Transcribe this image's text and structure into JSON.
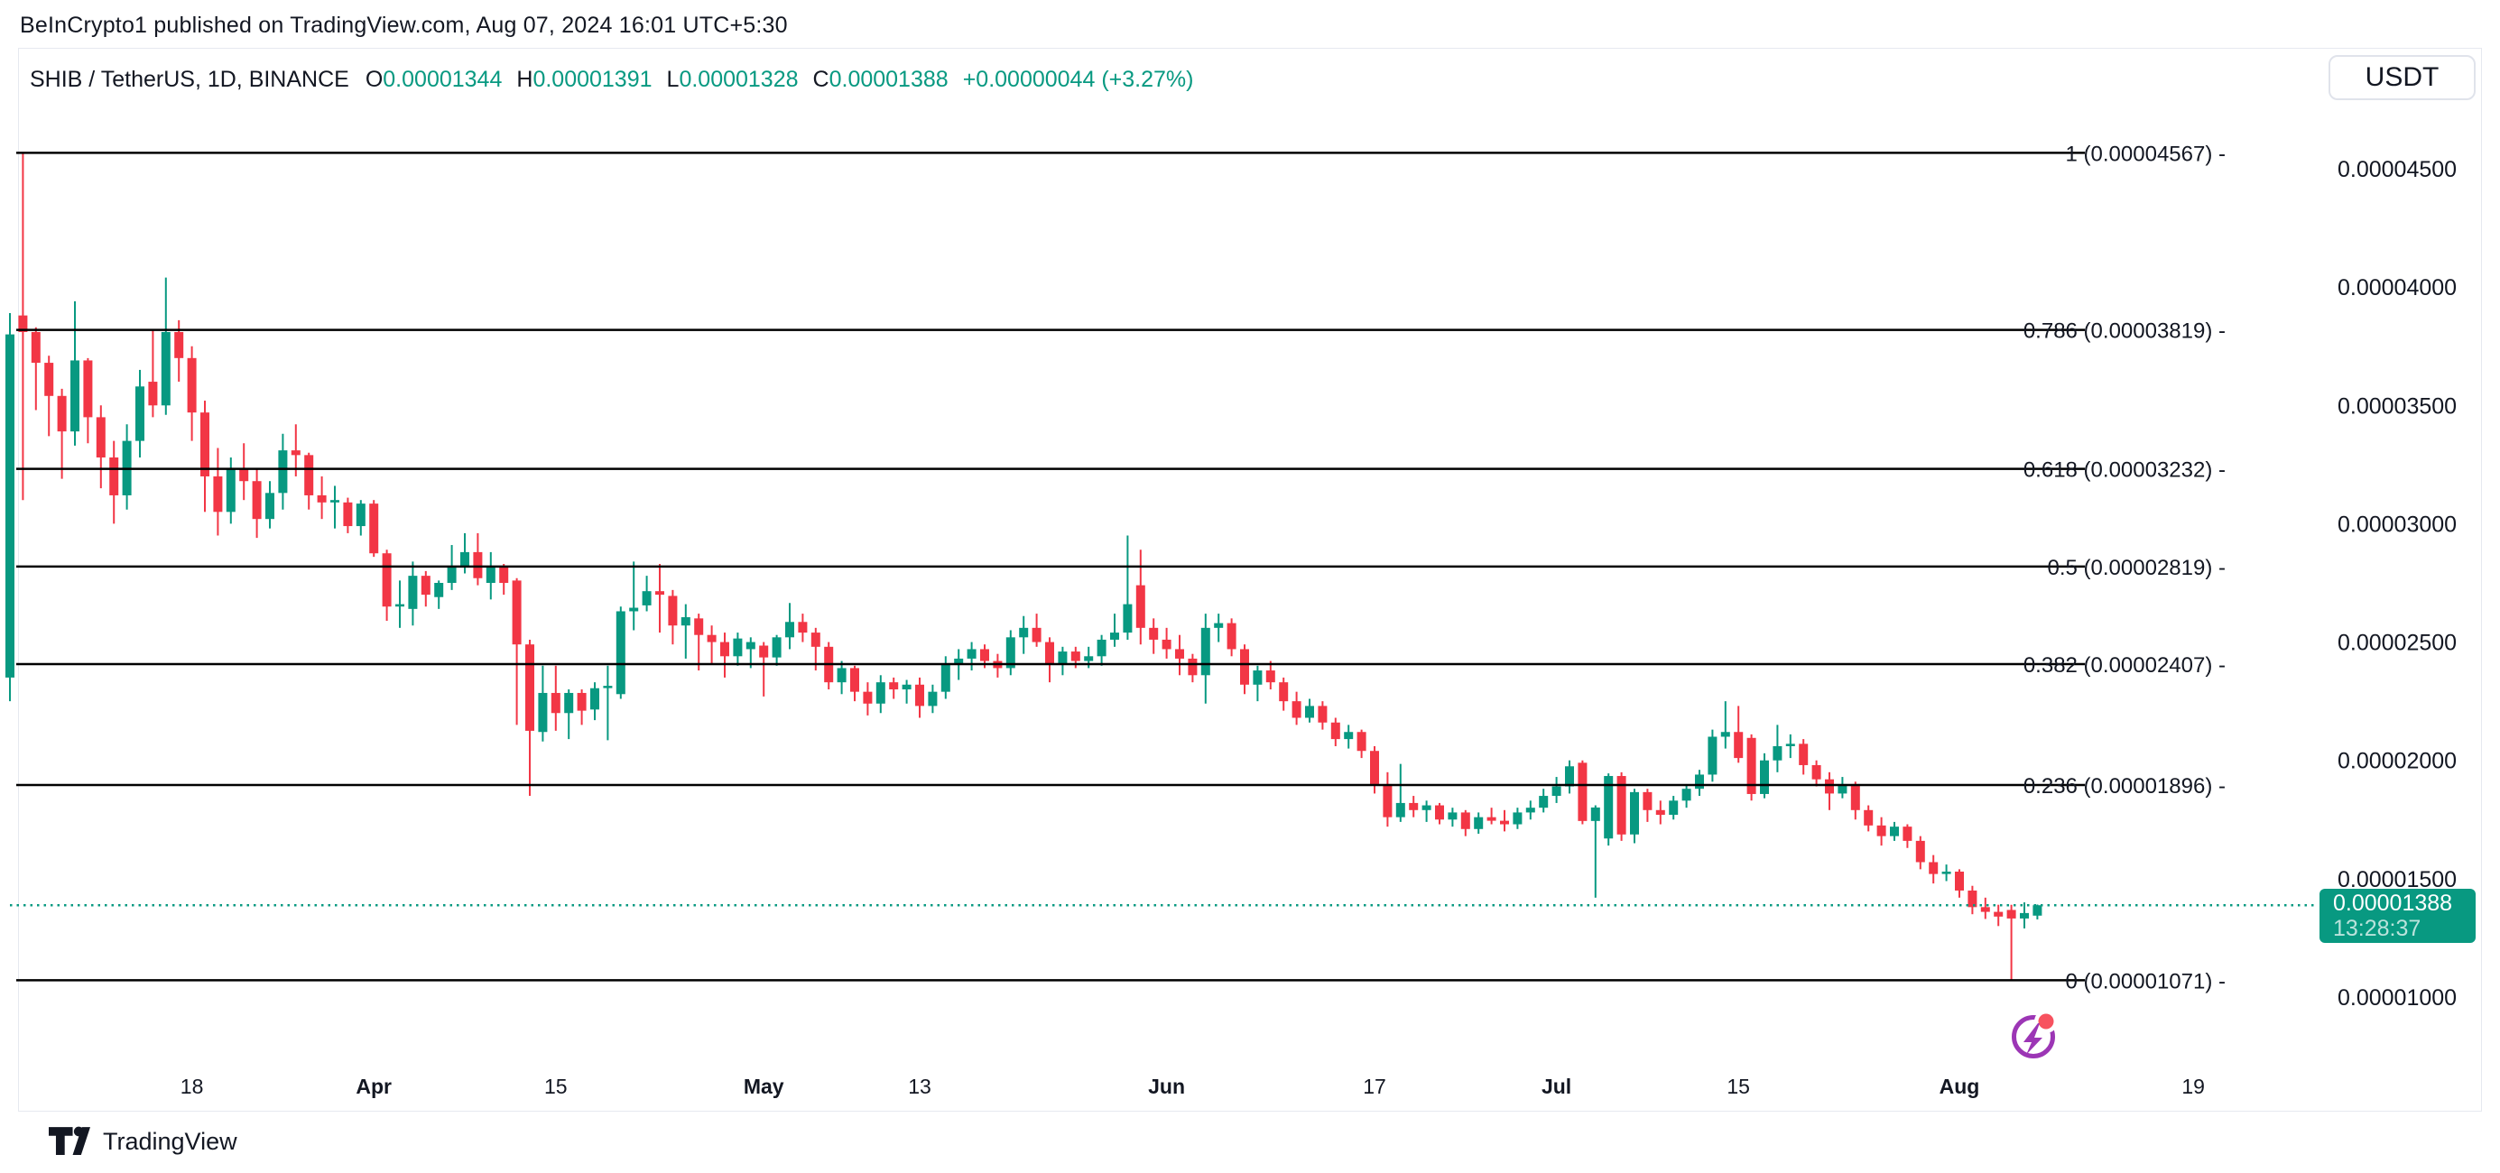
{
  "publish_header": "BeInCrypto1 published on TradingView.com, Aug 07, 2024 16:01 UTC+5:30",
  "toolbar": {
    "symbol_title": "SHIB / TetherUS, 1D, BINANCE",
    "ohlc": {
      "o_label": "O",
      "o": "0.00001344",
      "h_label": "H",
      "h": "0.00001391",
      "l_label": "L",
      "l": "0.00001328",
      "c_label": "C",
      "c": "0.00001388",
      "change": "+0.00000044 (+3.27%)"
    },
    "currency_button": "USDT"
  },
  "footer": {
    "brand": "TradingView"
  },
  "icons": {
    "flash_icon": "purple circle with lightning bolt and red notification dot",
    "tradingview_logo": "TV glyph"
  },
  "chart_data": {
    "type": "candlestick",
    "title": "SHIB / TetherUS, 1D, BINANCE",
    "symbol": "SHIB/USDT",
    "interval": "1D",
    "exchange": "BINANCE",
    "legend_position": "none",
    "grid": "off",
    "price_scale": 1e-08,
    "start_date": "2024-03-04",
    "end_date": "2024-08-07",
    "ylim": [
      8.5e-06,
      4.77e-05
    ],
    "colors": {
      "up": "#089981",
      "down": "#f23645",
      "fib_line": "#000000",
      "dotted_line": "#089981",
      "badge_bg": "#089981",
      "text": "#131722",
      "accent_teal": "#089981",
      "icon_purple": "#9c36b5",
      "icon_dot_red": "#f7525f"
    },
    "y_axis": {
      "ticks": [
        "0.00004500",
        "0.00004000",
        "0.00003500",
        "0.00003000",
        "0.00002500",
        "0.00002000",
        "0.00001500",
        "0.00001000"
      ],
      "values": [
        4500,
        4000,
        3500,
        3000,
        2500,
        2000,
        1500,
        1000
      ]
    },
    "x_axis": {
      "ticks": [
        {
          "label": "18",
          "day": 14,
          "bold": false
        },
        {
          "label": "Apr",
          "day": 28,
          "bold": true
        },
        {
          "label": "15",
          "day": 42,
          "bold": false
        },
        {
          "label": "May",
          "day": 58,
          "bold": true
        },
        {
          "label": "13",
          "day": 70,
          "bold": false
        },
        {
          "label": "Jun",
          "day": 89,
          "bold": true
        },
        {
          "label": "17",
          "day": 105,
          "bold": false
        },
        {
          "label": "Jul",
          "day": 119,
          "bold": true
        },
        {
          "label": "15",
          "day": 133,
          "bold": false
        },
        {
          "label": "Aug",
          "day": 150,
          "bold": true
        },
        {
          "label": "19",
          "day": 168,
          "bold": false
        }
      ]
    },
    "fib_levels": [
      {
        "ratio": "1",
        "price": 4567,
        "label": "1 (0.00004567) -"
      },
      {
        "ratio": "0.786",
        "price": 3819,
        "label": "0.786 (0.00003819) -"
      },
      {
        "ratio": "0.618",
        "price": 3232,
        "label": "0.618 (0.00003232) -"
      },
      {
        "ratio": "0.5",
        "price": 2819,
        "label": "0.5 (0.00002819) -"
      },
      {
        "ratio": "0.382",
        "price": 2407,
        "label": "0.382 (0.00002407) -"
      },
      {
        "ratio": "0.236",
        "price": 1896,
        "label": "0.236 (0.00001896) -"
      },
      {
        "ratio": "0",
        "price": 1071,
        "label": "0 (0.00001071) -"
      }
    ],
    "last_price": {
      "value": "0.00001388",
      "countdown": "13:28:37",
      "price": 1388
    },
    "candles_format": "[open, high, low, close] in units of 0.00000001 USDT, daily from 2024-03-04",
    "candles": [
      [
        2350,
        3890,
        2250,
        3800
      ],
      [
        3880,
        4567,
        3100,
        3810
      ],
      [
        3810,
        3830,
        3480,
        3680
      ],
      [
        3680,
        3710,
        3370,
        3540
      ],
      [
        3540,
        3570,
        3190,
        3390
      ],
      [
        3390,
        3940,
        3330,
        3690
      ],
      [
        3690,
        3700,
        3340,
        3450
      ],
      [
        3450,
        3500,
        3150,
        3280
      ],
      [
        3280,
        3350,
        3000,
        3120
      ],
      [
        3120,
        3420,
        3060,
        3350
      ],
      [
        3350,
        3650,
        3280,
        3580
      ],
      [
        3600,
        3820,
        3450,
        3500
      ],
      [
        3500,
        4040,
        3460,
        3810
      ],
      [
        3810,
        3860,
        3600,
        3700
      ],
      [
        3700,
        3750,
        3350,
        3470
      ],
      [
        3470,
        3520,
        3050,
        3200
      ],
      [
        3200,
        3320,
        2950,
        3050
      ],
      [
        3050,
        3280,
        3000,
        3230
      ],
      [
        3230,
        3340,
        3100,
        3180
      ],
      [
        3180,
        3230,
        2940,
        3020
      ],
      [
        3020,
        3180,
        2980,
        3130
      ],
      [
        3130,
        3380,
        3060,
        3310
      ],
      [
        3310,
        3420,
        3200,
        3290
      ],
      [
        3290,
        3300,
        3060,
        3120
      ],
      [
        3120,
        3200,
        3020,
        3090
      ],
      [
        3090,
        3160,
        2980,
        3100
      ],
      [
        3090,
        3110,
        2960,
        2990
      ],
      [
        2990,
        3100,
        2950,
        3085
      ],
      [
        3085,
        3100,
        2860,
        2875
      ],
      [
        2875,
        2890,
        2590,
        2650
      ],
      [
        2650,
        2760,
        2560,
        2660
      ],
      [
        2640,
        2840,
        2570,
        2780
      ],
      [
        2780,
        2800,
        2650,
        2700
      ],
      [
        2690,
        2760,
        2640,
        2750
      ],
      [
        2750,
        2910,
        2720,
        2820
      ],
      [
        2820,
        2960,
        2790,
        2880
      ],
      [
        2880,
        2960,
        2740,
        2770
      ],
      [
        2750,
        2880,
        2680,
        2820
      ],
      [
        2820,
        2830,
        2700,
        2750
      ],
      [
        2760,
        2770,
        2150,
        2490
      ],
      [
        2490,
        2510,
        1850,
        2125
      ],
      [
        2120,
        2400,
        2080,
        2285
      ],
      [
        2285,
        2400,
        2125,
        2200
      ],
      [
        2200,
        2300,
        2090,
        2285
      ],
      [
        2285,
        2300,
        2150,
        2210
      ],
      [
        2215,
        2330,
        2170,
        2305
      ],
      [
        2310,
        2400,
        2085,
        2315
      ],
      [
        2280,
        2650,
        2260,
        2630
      ],
      [
        2630,
        2840,
        2550,
        2645
      ],
      [
        2655,
        2780,
        2630,
        2715
      ],
      [
        2715,
        2830,
        2540,
        2700
      ],
      [
        2695,
        2720,
        2490,
        2570
      ],
      [
        2570,
        2660,
        2430,
        2605
      ],
      [
        2600,
        2620,
        2380,
        2530
      ],
      [
        2530,
        2570,
        2410,
        2500
      ],
      [
        2500,
        2540,
        2350,
        2440
      ],
      [
        2440,
        2540,
        2400,
        2515
      ],
      [
        2470,
        2520,
        2390,
        2500
      ],
      [
        2485,
        2500,
        2270,
        2435
      ],
      [
        2435,
        2530,
        2400,
        2520
      ],
      [
        2520,
        2665,
        2470,
        2585
      ],
      [
        2585,
        2620,
        2500,
        2540
      ],
      [
        2540,
        2560,
        2380,
        2480
      ],
      [
        2480,
        2500,
        2300,
        2330
      ],
      [
        2330,
        2420,
        2280,
        2390
      ],
      [
        2390,
        2400,
        2250,
        2290
      ],
      [
        2290,
        2330,
        2190,
        2240
      ],
      [
        2240,
        2360,
        2200,
        2330
      ],
      [
        2330,
        2350,
        2260,
        2300
      ],
      [
        2300,
        2340,
        2240,
        2320
      ],
      [
        2320,
        2350,
        2180,
        2230
      ],
      [
        2230,
        2320,
        2200,
        2290
      ],
      [
        2290,
        2440,
        2260,
        2410
      ],
      [
        2410,
        2470,
        2340,
        2430
      ],
      [
        2430,
        2500,
        2380,
        2470
      ],
      [
        2470,
        2490,
        2390,
        2420
      ],
      [
        2420,
        2450,
        2350,
        2390
      ],
      [
        2390,
        2550,
        2360,
        2520
      ],
      [
        2520,
        2610,
        2450,
        2560
      ],
      [
        2560,
        2620,
        2480,
        2500
      ],
      [
        2500,
        2520,
        2330,
        2410
      ],
      [
        2410,
        2480,
        2360,
        2460
      ],
      [
        2460,
        2480,
        2390,
        2420
      ],
      [
        2420,
        2480,
        2390,
        2440
      ],
      [
        2440,
        2530,
        2400,
        2510
      ],
      [
        2510,
        2620,
        2480,
        2540
      ],
      [
        2540,
        2950,
        2510,
        2660
      ],
      [
        2740,
        2890,
        2490,
        2560
      ],
      [
        2560,
        2600,
        2450,
        2510
      ],
      [
        2510,
        2560,
        2430,
        2470
      ],
      [
        2470,
        2530,
        2360,
        2430
      ],
      [
        2430,
        2450,
        2330,
        2360
      ],
      [
        2360,
        2620,
        2240,
        2560
      ],
      [
        2560,
        2620,
        2500,
        2580
      ],
      [
        2580,
        2600,
        2440,
        2470
      ],
      [
        2470,
        2490,
        2280,
        2320
      ],
      [
        2320,
        2400,
        2250,
        2380
      ],
      [
        2380,
        2420,
        2300,
        2330
      ],
      [
        2330,
        2350,
        2210,
        2250
      ],
      [
        2250,
        2290,
        2150,
        2180
      ],
      [
        2180,
        2260,
        2160,
        2230
      ],
      [
        2230,
        2250,
        2130,
        2160
      ],
      [
        2160,
        2180,
        2060,
        2090
      ],
      [
        2090,
        2150,
        2050,
        2120
      ],
      [
        2120,
        2130,
        2010,
        2040
      ],
      [
        2040,
        2060,
        1860,
        1900
      ],
      [
        1900,
        1950,
        1720,
        1760
      ],
      [
        1760,
        1985,
        1740,
        1820
      ],
      [
        1820,
        1850,
        1760,
        1790
      ],
      [
        1790,
        1830,
        1740,
        1810
      ],
      [
        1810,
        1820,
        1730,
        1750
      ],
      [
        1750,
        1800,
        1720,
        1780
      ],
      [
        1780,
        1790,
        1680,
        1710
      ],
      [
        1710,
        1780,
        1690,
        1760
      ],
      [
        1760,
        1800,
        1730,
        1745
      ],
      [
        1745,
        1790,
        1700,
        1730
      ],
      [
        1730,
        1800,
        1710,
        1780
      ],
      [
        1780,
        1830,
        1750,
        1800
      ],
      [
        1800,
        1880,
        1780,
        1850
      ],
      [
        1850,
        1930,
        1820,
        1890
      ],
      [
        1890,
        2000,
        1860,
        1975
      ],
      [
        1990,
        2000,
        1730,
        1744
      ],
      [
        1744,
        1810,
        1420,
        1801
      ],
      [
        1670,
        1945,
        1640,
        1934
      ],
      [
        1934,
        1950,
        1660,
        1687
      ],
      [
        1687,
        1880,
        1650,
        1866
      ],
      [
        1866,
        1880,
        1740,
        1790
      ],
      [
        1790,
        1830,
        1730,
        1770
      ],
      [
        1770,
        1850,
        1750,
        1830
      ],
      [
        1830,
        1900,
        1800,
        1880
      ],
      [
        1880,
        1960,
        1850,
        1940
      ],
      [
        1940,
        2130,
        1910,
        2100
      ],
      [
        2100,
        2250,
        2050,
        2120
      ],
      [
        2120,
        2230,
        1990,
        2010
      ],
      [
        2095,
        2110,
        1830,
        1858
      ],
      [
        1858,
        2030,
        1840,
        2000
      ],
      [
        2000,
        2150,
        1950,
        2060
      ],
      [
        2060,
        2110,
        2010,
        2070
      ],
      [
        2070,
        2090,
        1940,
        1980
      ],
      [
        1980,
        2000,
        1890,
        1920
      ],
      [
        1920,
        1950,
        1790,
        1860
      ],
      [
        1860,
        1930,
        1840,
        1900
      ],
      [
        1900,
        1910,
        1750,
        1790
      ],
      [
        1790,
        1810,
        1700,
        1725
      ],
      [
        1725,
        1760,
        1640,
        1680
      ],
      [
        1680,
        1740,
        1660,
        1720
      ],
      [
        1720,
        1730,
        1630,
        1660
      ],
      [
        1660,
        1680,
        1540,
        1570
      ],
      [
        1570,
        1600,
        1480,
        1520
      ],
      [
        1520,
        1560,
        1490,
        1530
      ],
      [
        1530,
        1540,
        1420,
        1450
      ],
      [
        1450,
        1470,
        1350,
        1380
      ],
      [
        1380,
        1420,
        1330,
        1360
      ],
      [
        1360,
        1390,
        1300,
        1340
      ],
      [
        1368,
        1390,
        1071,
        1332
      ],
      [
        1332,
        1400,
        1290,
        1355
      ],
      [
        1344,
        1391,
        1328,
        1388
      ]
    ]
  }
}
